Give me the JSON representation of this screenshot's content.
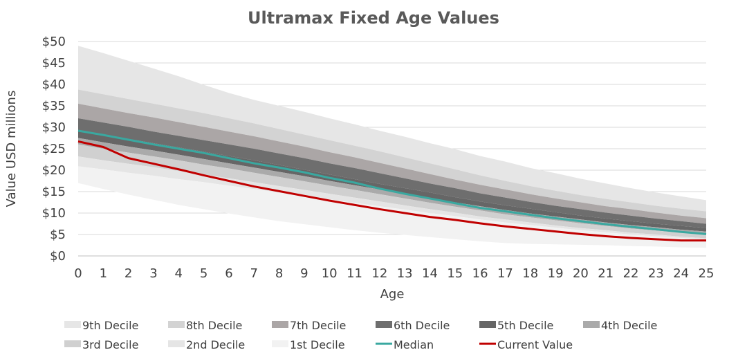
{
  "chart_data": {
    "type": "area",
    "title": "Ultramax Fixed Age Values",
    "xlabel": "Age",
    "ylabel": "Value USD millions",
    "x": [
      0,
      1,
      2,
      3,
      4,
      5,
      6,
      7,
      8,
      9,
      10,
      11,
      12,
      13,
      14,
      15,
      16,
      17,
      18,
      19,
      20,
      21,
      22,
      23,
      24,
      25
    ],
    "x_tick_labels": [
      "0",
      "1",
      "2",
      "3",
      "4",
      "5",
      "6",
      "7",
      "8",
      "9",
      "10",
      "11",
      "12",
      "13",
      "14",
      "15",
      "16",
      "17",
      "18",
      "19",
      "20",
      "21",
      "22",
      "23",
      "24",
      "25"
    ],
    "ylim": [
      0,
      50
    ],
    "y_tick_values": [
      0,
      5,
      10,
      15,
      20,
      25,
      30,
      35,
      40,
      45,
      50
    ],
    "y_tick_labels": [
      "$0",
      "$5",
      "$10",
      "$15",
      "$20",
      "$25",
      "$30",
      "$35",
      "$40",
      "$45",
      "$50"
    ],
    "grid": "horizontal",
    "legend_position": "bottom",
    "bands": [
      {
        "name": "9th Decile",
        "color": "#e6e6e6",
        "lower": [
          38.8,
          37.7,
          36.6,
          35.5,
          34.4,
          33.3,
          32.1,
          30.9,
          29.6,
          28.3,
          27.0,
          25.7,
          24.4,
          23.0,
          21.6,
          20.2,
          18.8,
          17.5,
          16.3,
          15.2,
          14.2,
          13.3,
          12.5,
          11.7,
          11.0,
          10.4
        ],
        "upper": [
          49.0,
          47.3,
          45.5,
          43.7,
          41.9,
          39.9,
          38.0,
          36.4,
          35.0,
          33.6,
          32.1,
          30.7,
          29.2,
          27.8,
          26.3,
          24.9,
          23.3,
          22.0,
          20.5,
          19.3,
          18.0,
          16.9,
          15.8,
          14.8,
          13.9,
          13.0
        ]
      },
      {
        "name": "8th Decile",
        "color": "#d3d3d3",
        "lower": [
          35.5,
          34.4,
          33.3,
          32.3,
          31.2,
          30.1,
          29.0,
          27.9,
          26.7,
          25.5,
          24.2,
          23.0,
          21.7,
          20.4,
          19.1,
          17.8,
          16.6,
          15.5,
          14.4,
          13.4,
          12.5,
          11.6,
          10.9,
          10.1,
          9.4,
          8.8
        ],
        "upper": [
          38.8,
          37.7,
          36.6,
          35.5,
          34.4,
          33.3,
          32.1,
          30.9,
          29.6,
          28.3,
          27.0,
          25.7,
          24.4,
          23.0,
          21.6,
          20.2,
          18.8,
          17.5,
          16.3,
          15.2,
          14.2,
          13.3,
          12.5,
          11.7,
          11.0,
          10.4
        ]
      },
      {
        "name": "7th Decile",
        "color": "#aba6a6",
        "lower": [
          32.1,
          31.1,
          30.1,
          29.0,
          28.0,
          27.0,
          26.0,
          25.0,
          23.9,
          22.8,
          21.6,
          20.5,
          19.3,
          18.1,
          16.9,
          15.8,
          14.6,
          13.6,
          12.6,
          11.7,
          10.9,
          10.1,
          9.4,
          8.7,
          8.1,
          7.5
        ],
        "upper": [
          35.5,
          34.4,
          33.3,
          32.3,
          31.2,
          30.1,
          29.0,
          27.9,
          26.7,
          25.5,
          24.2,
          23.0,
          21.7,
          20.4,
          19.1,
          17.8,
          16.6,
          15.5,
          14.4,
          13.4,
          12.5,
          11.6,
          10.9,
          10.1,
          9.4,
          8.8
        ]
      },
      {
        "name": "6th Decile",
        "color": "#6e6e6e",
        "lower": [
          29.2,
          28.3,
          27.3,
          26.3,
          25.3,
          24.3,
          23.3,
          22.3,
          21.2,
          20.1,
          19.0,
          17.9,
          16.8,
          15.8,
          14.8,
          13.7,
          12.7,
          11.8,
          11.0,
          10.2,
          9.4,
          8.7,
          8.1,
          7.5,
          7.0,
          6.5
        ],
        "upper": [
          32.1,
          31.1,
          30.1,
          29.0,
          28.0,
          27.0,
          26.0,
          25.0,
          23.9,
          22.8,
          21.6,
          20.5,
          19.3,
          18.1,
          16.9,
          15.8,
          14.6,
          13.6,
          12.6,
          11.7,
          10.9,
          10.1,
          9.4,
          8.7,
          8.1,
          7.5
        ]
      },
      {
        "name": "5th Decile",
        "color": "#666666",
        "lower": [
          27.5,
          26.5,
          25.5,
          24.6,
          23.6,
          22.6,
          21.6,
          20.6,
          19.6,
          18.6,
          17.5,
          16.5,
          15.5,
          14.5,
          13.5,
          12.5,
          11.6,
          10.7,
          9.9,
          9.2,
          8.5,
          7.8,
          7.2,
          6.7,
          6.1,
          5.7
        ],
        "upper": [
          29.2,
          28.3,
          27.3,
          26.3,
          25.3,
          24.3,
          23.3,
          22.3,
          21.2,
          20.1,
          19.0,
          17.9,
          16.8,
          15.8,
          14.8,
          13.7,
          12.7,
          11.8,
          11.0,
          10.2,
          9.4,
          8.7,
          8.1,
          7.5,
          7.0,
          6.5
        ]
      },
      {
        "name": "4th Decile",
        "color": "#aaaaaa",
        "lower": [
          26.0,
          25.0,
          24.1,
          23.2,
          22.3,
          21.3,
          20.4,
          19.4,
          18.4,
          17.4,
          16.4,
          15.4,
          14.4,
          13.4,
          12.4,
          11.5,
          10.6,
          9.7,
          9.0,
          8.3,
          7.6,
          7.0,
          6.4,
          5.9,
          5.4,
          5.0
        ],
        "upper": [
          27.5,
          26.5,
          25.5,
          24.6,
          23.6,
          22.6,
          21.6,
          20.6,
          19.6,
          18.6,
          17.5,
          16.5,
          15.5,
          14.5,
          13.5,
          12.5,
          11.6,
          10.7,
          9.9,
          9.2,
          8.5,
          7.8,
          7.2,
          6.7,
          6.1,
          5.7
        ]
      },
      {
        "name": "3rd Decile",
        "color": "#d0d0d0",
        "lower": [
          23.2,
          22.3,
          21.5,
          20.7,
          19.8,
          19.0,
          18.1,
          17.2,
          16.3,
          15.4,
          14.5,
          13.6,
          12.7,
          11.8,
          10.9,
          10.1,
          9.2,
          8.5,
          7.8,
          7.1,
          6.5,
          6.0,
          5.4,
          5.0,
          4.5,
          4.1
        ],
        "upper": [
          26.0,
          25.0,
          24.1,
          23.2,
          22.3,
          21.3,
          20.4,
          19.4,
          18.4,
          17.4,
          16.4,
          15.4,
          14.4,
          13.4,
          12.4,
          11.5,
          10.6,
          9.7,
          9.0,
          8.3,
          7.6,
          7.0,
          6.4,
          5.9,
          5.4,
          5.0
        ]
      },
      {
        "name": "2nd Decile",
        "color": "#e5e5e5",
        "lower": [
          20.9,
          20.2,
          19.4,
          18.7,
          17.9,
          17.2,
          16.4,
          15.6,
          14.8,
          14.0,
          13.2,
          12.4,
          11.6,
          10.8,
          10.0,
          9.3,
          8.5,
          7.8,
          7.2,
          6.6,
          6.0,
          5.5,
          5.0,
          4.6,
          4.2,
          3.8
        ],
        "upper": [
          23.2,
          22.3,
          21.5,
          20.7,
          19.8,
          19.0,
          18.1,
          17.2,
          16.3,
          15.4,
          14.5,
          13.6,
          12.7,
          11.8,
          10.9,
          10.1,
          9.2,
          8.5,
          7.8,
          7.1,
          6.5,
          6.0,
          5.4,
          5.0,
          4.5,
          4.1
        ]
      },
      {
        "name": "1st Decile",
        "color": "#f2f2f2",
        "lower": [
          17.0,
          15.6,
          14.3,
          13.1,
          11.9,
          10.9,
          9.9,
          9.0,
          8.1,
          7.4,
          6.7,
          6.0,
          5.4,
          4.9,
          4.4,
          3.9,
          3.4,
          3.0,
          2.8,
          2.7,
          2.6,
          2.5,
          2.3,
          2.2,
          2.0,
          1.9
        ],
        "upper": [
          20.9,
          20.2,
          19.4,
          18.7,
          17.9,
          17.2,
          16.4,
          15.6,
          14.8,
          14.0,
          13.2,
          12.4,
          11.6,
          10.8,
          10.0,
          9.3,
          8.5,
          7.8,
          7.2,
          6.6,
          6.0,
          5.5,
          5.0,
          4.6,
          4.2,
          3.8
        ]
      }
    ],
    "lines": [
      {
        "name": "Median",
        "color": "#3aa8a0",
        "values": [
          29.2,
          28.2,
          27.1,
          26.0,
          25.0,
          24.0,
          22.8,
          21.6,
          20.6,
          19.5,
          18.2,
          17.1,
          15.7,
          14.5,
          13.4,
          12.3,
          11.2,
          10.4,
          9.6,
          8.8,
          8.1,
          7.4,
          6.8,
          6.2,
          5.6,
          5.1
        ]
      },
      {
        "name": "Current Value",
        "color": "#c00000",
        "values": [
          26.7,
          25.4,
          22.8,
          21.5,
          20.2,
          18.8,
          17.5,
          16.2,
          15.1,
          14.0,
          12.9,
          11.9,
          10.9,
          10.0,
          9.1,
          8.4,
          7.6,
          6.9,
          6.3,
          5.7,
          5.1,
          4.6,
          4.2,
          3.9,
          3.6,
          3.6
        ]
      }
    ],
    "legend": [
      {
        "label": "9th Decile",
        "kind": "box",
        "color": "#e6e6e6"
      },
      {
        "label": "8th Decile",
        "kind": "box",
        "color": "#d3d3d3"
      },
      {
        "label": "7th Decile",
        "kind": "box",
        "color": "#aba6a6"
      },
      {
        "label": "6th Decile",
        "kind": "box",
        "color": "#6e6e6e"
      },
      {
        "label": "5th Decile",
        "kind": "box",
        "color": "#666666"
      },
      {
        "label": "4th Decile",
        "kind": "box",
        "color": "#aaaaaa"
      },
      {
        "label": "3rd Decile",
        "kind": "box",
        "color": "#d0d0d0"
      },
      {
        "label": "2nd Decile",
        "kind": "box",
        "color": "#e5e5e5"
      },
      {
        "label": "1st Decile",
        "kind": "box",
        "color": "#f2f2f2"
      },
      {
        "label": "Median",
        "kind": "line",
        "color": "#3aa8a0"
      },
      {
        "label": "Current Value",
        "kind": "line",
        "color": "#c00000"
      }
    ]
  }
}
